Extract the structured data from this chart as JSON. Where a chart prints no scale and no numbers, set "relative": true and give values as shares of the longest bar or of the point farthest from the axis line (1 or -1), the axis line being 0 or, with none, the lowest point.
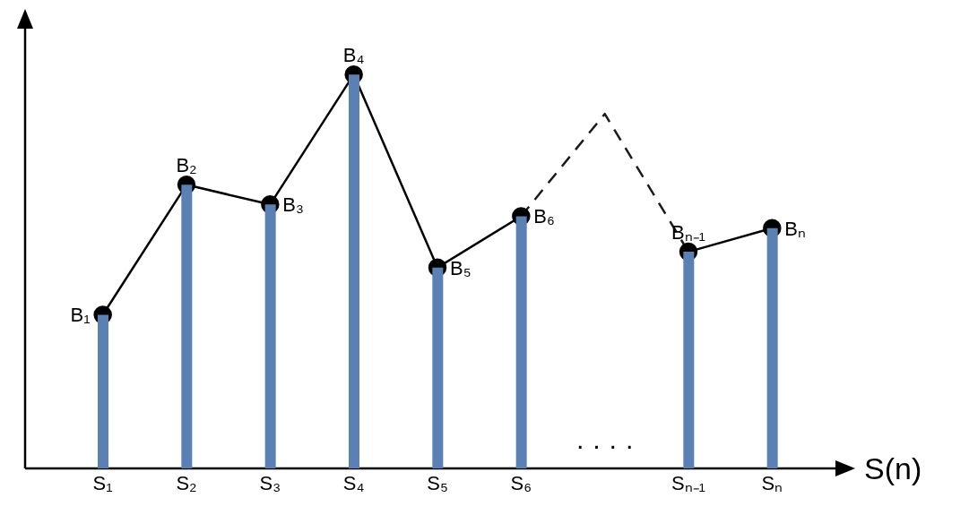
{
  "chart_data": {
    "type": "bar",
    "relative": true,
    "xlabel": "S(n)",
    "categories": [
      "S₁",
      "S₂",
      "S₃",
      "S₄",
      "S₅",
      "S₆",
      null,
      "Sₙ₋₁",
      "Sₙ"
    ],
    "series": [
      {
        "type": "line",
        "color": "#1a1a1a",
        "marker": "none",
        "line_style": "dashed",
        "values": [
          null,
          null,
          null,
          null,
          null,
          0.64,
          0.9,
          0.55,
          null
        ]
      },
      {
        "type": "line",
        "color": "#000000",
        "marker": "circle",
        "line_style": "solid",
        "values": [
          0.39,
          0.72,
          0.67,
          1,
          0.51,
          0.64,
          null,
          0.55,
          0.61
        ]
      },
      {
        "color": "#5b80b4",
        "values": [
          0.39,
          0.72,
          0.67,
          1,
          0.51,
          0.64,
          null,
          0.55,
          0.61
        ]
      }
    ],
    "annotations": [
      {
        "text": "B₁",
        "x": "S₁",
        "y": 0.39
      },
      {
        "text": "B₂",
        "x": "S₂",
        "y": 0.72
      },
      {
        "text": "B₃",
        "x": "S₃",
        "y": 0.67
      },
      {
        "text": "B₄",
        "x": "S₄",
        "y": 1
      },
      {
        "text": "B₅",
        "x": "S₅",
        "y": 0.51
      },
      {
        "text": "B₆",
        "x": "S₆",
        "y": 0.64
      },
      {
        "text": "Bₙ₋₁",
        "x": "Sₙ₋₁",
        "y": 0.55
      },
      {
        "text": "Bₙ",
        "x": "Sₙ",
        "y": 0.61
      },
      "· · · ·"
    ]
  }
}
